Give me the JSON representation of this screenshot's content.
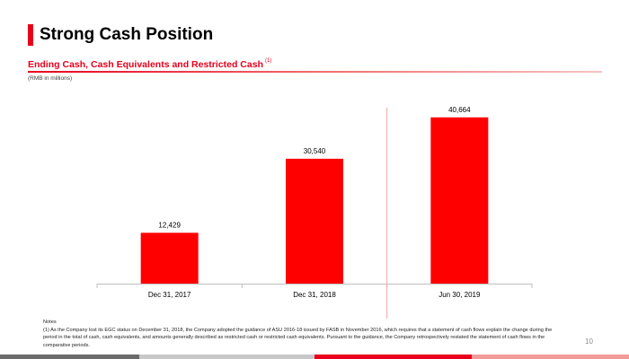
{
  "header": {
    "title": "Strong Cash Position",
    "subtitle": "Ending Cash, Cash Equivalents and Restricted Cash",
    "subtitle_note": "(1)",
    "unit": "(RMB in millions)"
  },
  "notes": {
    "heading": "Notes",
    "text": "(1) As the Company lost its EGC status on December 31, 2018, the Company adopted the guidance of ASU 2016-18 issued by FASB in November 2016, which requires that a statement of cash flows explain the change during the period in the total of cash, cash equivalents, and amounts generally described as restricted cash or restricted cash equivalents. Pursuant to the guidance, the Company retrospectively restated the statement of cash flows in the comparative periods."
  },
  "page_number": "10",
  "colors": {
    "accent": "#e8001c",
    "bar": "#ff0000",
    "divider": "#f2a2a2",
    "axis": "#bfbfbf"
  },
  "chart_data": {
    "type": "bar",
    "categories": [
      "Dec 31, 2017",
      "Dec 31, 2018",
      "Jun 30, 2019"
    ],
    "values": [
      12429,
      30540,
      40664
    ],
    "value_labels": [
      "12,429",
      "30,540",
      "40,664"
    ],
    "title": "Ending Cash, Cash Equivalents and Restricted Cash",
    "xlabel": "",
    "ylabel": "(RMB in millions)",
    "ylim": [
      0,
      45000
    ],
    "grid": false,
    "legend": "none"
  }
}
